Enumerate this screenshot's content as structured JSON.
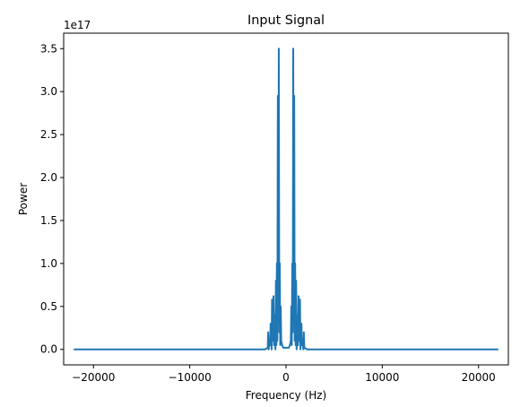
{
  "chart_data": {
    "type": "line",
    "title": "Input Signal",
    "xlabel": "Frequency (Hz)",
    "ylabel": "Power",
    "y_offset_label": "1e17",
    "xlim": [
      -23100,
      23100
    ],
    "ylim": [
      -0.18,
      3.68
    ],
    "x_ticks": [
      -20000,
      -10000,
      0,
      10000,
      20000
    ],
    "x_tick_labels": [
      "−20000",
      "−10000",
      "0",
      "10000",
      "20000"
    ],
    "y_ticks": [
      0.0,
      0.5,
      1.0,
      1.5,
      2.0,
      2.5,
      3.0,
      3.5
    ],
    "y_tick_labels": [
      "0.0",
      "0.5",
      "1.0",
      "1.5",
      "2.0",
      "2.5",
      "3.0",
      "3.5"
    ],
    "grid": false,
    "legend": "none",
    "series": [
      {
        "color": "#1f77b4",
        "x": [
          -22050,
          -2200,
          -1900,
          -1850,
          -1800,
          -1700,
          -1650,
          -1600,
          -1500,
          -1450,
          -1400,
          -1300,
          -1250,
          -1200,
          -1100,
          -1050,
          -1000,
          -950,
          -900,
          -850,
          -800,
          -750,
          -700,
          -650,
          -600,
          -550,
          -500,
          -400,
          -300,
          -200,
          -100,
          0,
          100,
          200,
          300,
          400,
          500,
          550,
          600,
          650,
          700,
          750,
          800,
          850,
          900,
          950,
          1000,
          1050,
          1100,
          1200,
          1250,
          1300,
          1400,
          1450,
          1500,
          1600,
          1650,
          1700,
          1800,
          1850,
          1900,
          2200,
          22050
        ],
        "values": [
          0.0,
          0.0,
          0.02,
          0.2,
          0.0,
          0.12,
          0.05,
          0.3,
          0.0,
          0.58,
          0.1,
          0.62,
          0.05,
          0.4,
          0.0,
          0.8,
          0.05,
          1.0,
          0.1,
          2.95,
          0.3,
          3.5,
          0.2,
          1.0,
          0.05,
          0.5,
          0.1,
          0.05,
          0.02,
          0.02,
          0.02,
          0.02,
          0.02,
          0.02,
          0.02,
          0.05,
          0.1,
          0.5,
          0.05,
          1.0,
          0.2,
          3.5,
          0.3,
          2.95,
          0.1,
          1.0,
          0.05,
          0.8,
          0.0,
          0.4,
          0.05,
          0.62,
          0.1,
          0.58,
          0.0,
          0.3,
          0.05,
          0.12,
          0.0,
          0.2,
          0.02,
          0.0,
          0.0
        ]
      }
    ]
  }
}
